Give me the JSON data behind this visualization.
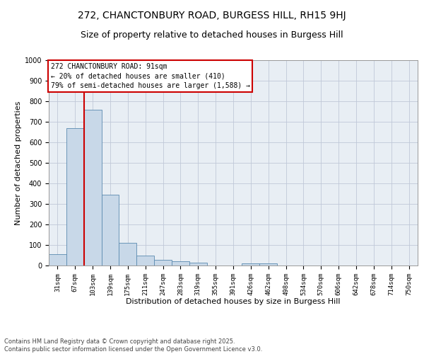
{
  "title1": "272, CHANCTONBURY ROAD, BURGESS HILL, RH15 9HJ",
  "title2": "Size of property relative to detached houses in Burgess Hill",
  "xlabel": "Distribution of detached houses by size in Burgess Hill",
  "ylabel": "Number of detached properties",
  "categories": [
    "31sqm",
    "67sqm",
    "103sqm",
    "139sqm",
    "175sqm",
    "211sqm",
    "247sqm",
    "283sqm",
    "319sqm",
    "355sqm",
    "391sqm",
    "426sqm",
    "462sqm",
    "498sqm",
    "534sqm",
    "570sqm",
    "606sqm",
    "642sqm",
    "678sqm",
    "714sqm",
    "750sqm"
  ],
  "values": [
    55,
    668,
    758,
    345,
    110,
    50,
    28,
    20,
    13,
    0,
    0,
    10,
    10,
    0,
    0,
    0,
    0,
    0,
    0,
    0,
    0
  ],
  "bar_color": "#c8d8e8",
  "bar_edge_color": "#5a8ab0",
  "grid_color": "#c0c8d8",
  "background_color": "#e8eef4",
  "vline_color": "#cc0000",
  "annotation_text": "272 CHANCTONBURY ROAD: 91sqm\n← 20% of detached houses are smaller (410)\n79% of semi-detached houses are larger (1,588) →",
  "annotation_box_color": "#cc0000",
  "ylim": [
    0,
    1000
  ],
  "yticks": [
    0,
    100,
    200,
    300,
    400,
    500,
    600,
    700,
    800,
    900,
    1000
  ],
  "footnote": "Contains HM Land Registry data © Crown copyright and database right 2025.\nContains public sector information licensed under the Open Government Licence v3.0.",
  "title1_fontsize": 10,
  "title2_fontsize": 9,
  "tick_fontsize": 6.5,
  "label_fontsize": 8
}
